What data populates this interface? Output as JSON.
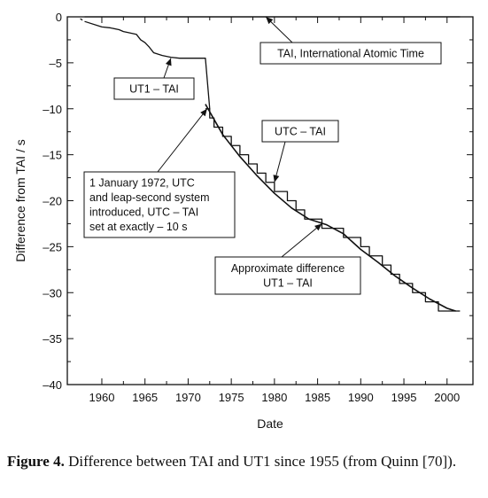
{
  "chart_data": {
    "type": "line",
    "title": "",
    "xlabel": "Date",
    "ylabel": "Difference from TAI / s",
    "xlim": [
      1956,
      2003
    ],
    "ylim": [
      -40,
      0
    ],
    "xticks": [
      1960,
      1965,
      1970,
      1975,
      1980,
      1985,
      1990,
      1995,
      2000
    ],
    "yticks": [
      0,
      -5,
      -10,
      -15,
      -20,
      -25,
      -30,
      -35,
      -40
    ],
    "grid": false,
    "legend": "none",
    "series": [
      {
        "name": "TAI, International Atomic Time",
        "style": "solid",
        "x": [
          1958,
          2001.5
        ],
        "y": [
          0,
          0
        ]
      },
      {
        "name": "UT1 – TAI",
        "style": "solid",
        "x": [
          1958,
          1960,
          1961,
          1962,
          1962.5,
          1963,
          1964,
          1964.5,
          1965,
          1965.5,
          1966,
          1967,
          1968,
          1969,
          1970,
          1971,
          1972,
          1972.5
        ],
        "y": [
          -0.5,
          -1.1,
          -1.2,
          -1.4,
          -1.6,
          -1.7,
          -1.9,
          -2.5,
          -2.8,
          -3.3,
          -3.9,
          -4.2,
          -4.4,
          -4.5,
          -4.5,
          -4.5,
          -4.5,
          -10
        ]
      },
      {
        "name": "UTC – TAI",
        "style": "step",
        "x": [
          1972.0,
          1972.5,
          1973.0,
          1974.0,
          1975.0,
          1976.0,
          1977.0,
          1978.0,
          1979.0,
          1980.0,
          1981.5,
          1982.5,
          1983.5,
          1985.5,
          1988.0,
          1990.0,
          1991.0,
          1992.5,
          1993.5,
          1994.5,
          1996.0,
          1997.5,
          1999.0,
          2001.5
        ],
        "y": [
          -10,
          -11,
          -12,
          -13,
          -14,
          -15,
          -16,
          -17,
          -18,
          -19,
          -20,
          -21,
          -22,
          -23,
          -24,
          -25,
          -26,
          -27,
          -28,
          -29,
          -30,
          -31,
          -32,
          -32
        ]
      },
      {
        "name": "Approximate difference UT1 – TAI",
        "style": "solid",
        "x": [
          1972.0,
          1974.0,
          1976.0,
          1978.0,
          1980.0,
          1982.0,
          1984.0,
          1986.0,
          1988.0,
          1990.0,
          1992.0,
          1994.0,
          1996.0,
          1998.0,
          2000.0,
          2001.0
        ],
        "y": [
          -9.5,
          -12.8,
          -15.2,
          -17.3,
          -19.2,
          -20.8,
          -22.0,
          -22.6,
          -23.6,
          -25.3,
          -26.7,
          -28.2,
          -29.5,
          -30.7,
          -31.7,
          -32.0
        ]
      }
    ],
    "annotations": [
      {
        "text": "TAI, International Atomic Time",
        "target": [
          1979,
          0
        ]
      },
      {
        "text": "UT1 – TAI",
        "target": [
          1968,
          -4.5
        ]
      },
      {
        "text": "UTC – TAI",
        "target": [
          1980,
          -18
        ]
      },
      {
        "lines": [
          "1 January 1972,  UTC",
          "and leap-second system",
          "introduced,  UTC – TAI",
          "set at exactly   – 10 s"
        ],
        "target": [
          1972.2,
          -10
        ]
      },
      {
        "lines": [
          "Approximate difference",
          "UT1 – TAI"
        ],
        "target": [
          1985.5,
          -22.5
        ]
      }
    ]
  },
  "caption": {
    "label": "Figure 4.",
    "text": " Difference between TAI and UT1 since 1955 (from Quinn [70])."
  }
}
